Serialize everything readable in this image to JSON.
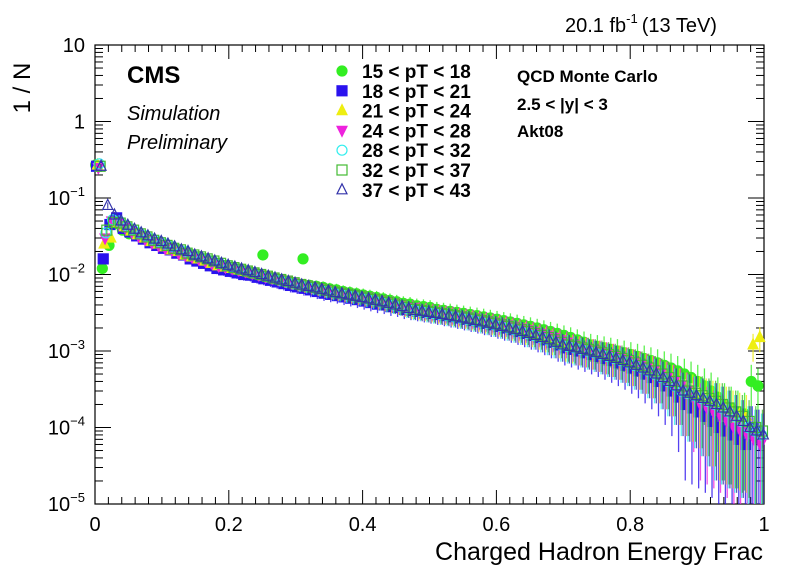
{
  "header": {
    "lumi_main": "20.1 fb",
    "lumi_exp": "-1",
    "lumi_energy": "(13 TeV)"
  },
  "labels": {
    "experiment": "CMS",
    "status_1": "Simulation",
    "status_2": "Preliminary"
  },
  "annotations": [
    "QCD Monte Carlo",
    "2.5 < |y| < 3",
    "Akt08"
  ],
  "chart_data": {
    "type": "scatter",
    "xlabel": "Charged Hadron Energy Frac",
    "ylabel": "1 / N",
    "xlim": [
      0,
      1
    ],
    "ylim": [
      1e-05,
      10
    ],
    "ylog": true,
    "grid": false,
    "legend_position": "top-center",
    "x_ticks": [
      "0",
      "0.2",
      "0.4",
      "0.6",
      "0.8",
      "1"
    ],
    "y_ticks": [
      {
        "base": "10",
        "exp": ""
      },
      {
        "base": "1",
        "exp": ""
      },
      {
        "base": "10",
        "exp": "−1"
      },
      {
        "base": "10",
        "exp": "−2"
      },
      {
        "base": "10",
        "exp": "−3"
      },
      {
        "base": "10",
        "exp": "−4"
      },
      {
        "base": "10",
        "exp": "−5"
      }
    ],
    "x": [
      0.005,
      0.015,
      0.025,
      0.035,
      0.045,
      0.055,
      0.065,
      0.075,
      0.085,
      0.095,
      0.105,
      0.115,
      0.125,
      0.135,
      0.145,
      0.155,
      0.165,
      0.175,
      0.185,
      0.195,
      0.205,
      0.215,
      0.225,
      0.235,
      0.245,
      0.255,
      0.265,
      0.275,
      0.285,
      0.295,
      0.305,
      0.315,
      0.325,
      0.335,
      0.345,
      0.355,
      0.365,
      0.375,
      0.385,
      0.395,
      0.405,
      0.415,
      0.425,
      0.435,
      0.445,
      0.455,
      0.465,
      0.475,
      0.485,
      0.495,
      0.505,
      0.515,
      0.525,
      0.535,
      0.545,
      0.555,
      0.565,
      0.575,
      0.585,
      0.595,
      0.605,
      0.615,
      0.625,
      0.635,
      0.645,
      0.655,
      0.665,
      0.675,
      0.685,
      0.695,
      0.705,
      0.715,
      0.725,
      0.735,
      0.745,
      0.755,
      0.765,
      0.775,
      0.785,
      0.795,
      0.805,
      0.815,
      0.825,
      0.835,
      0.845,
      0.855,
      0.865,
      0.875,
      0.885,
      0.895,
      0.905,
      0.915,
      0.925,
      0.935,
      0.945,
      0.955,
      0.965,
      0.975,
      0.985,
      0.995
    ],
    "series": [
      {
        "name": "15 < pT < 18",
        "color": "#33ee22",
        "marker": "circle-filled",
        "values": [
          0.27,
          0.012,
          0.024,
          0.046,
          0.038,
          0.034,
          0.033,
          0.03,
          0.027,
          0.026,
          0.024,
          0.022,
          0.02,
          0.019,
          0.017,
          0.016,
          0.015,
          0.014,
          0.013,
          0.012,
          0.0115,
          0.011,
          0.0105,
          0.01,
          0.0095,
          0.018,
          0.009,
          0.0085,
          0.008,
          0.0078,
          0.0075,
          0.016,
          0.0072,
          0.007,
          0.0068,
          0.0065,
          0.0063,
          0.006,
          0.0058,
          0.0056,
          0.0054,
          0.0052,
          0.005,
          0.0048,
          0.0046,
          0.0044,
          0.0042,
          0.0041,
          0.0039,
          0.0038,
          0.0037,
          0.0035,
          0.0034,
          0.0033,
          0.0032,
          0.0031,
          0.003,
          0.0029,
          0.0028,
          0.0027,
          0.0026,
          0.0025,
          0.0024,
          0.0023,
          0.0022,
          0.0021,
          0.002,
          0.0019,
          0.0018,
          0.0017,
          0.0016,
          0.0015,
          0.0014,
          0.0013,
          0.0012,
          0.00115,
          0.0011,
          0.00105,
          0.001,
          0.00095,
          0.0009,
          0.00085,
          0.0008,
          0.00075,
          0.0007,
          0.00065,
          0.0006,
          0.00055,
          0.0005,
          0.00045,
          0.0004,
          0.00035,
          0.0003,
          0.00025,
          0.0002,
          0.00018,
          0.00016,
          0.00015,
          0.0004,
          0.00035
        ]
      },
      {
        "name": "18 < pT < 21",
        "color": "#2a12ee",
        "marker": "square-filled",
        "values": [
          0.26,
          0.016,
          0.045,
          0.055,
          0.04,
          0.036,
          0.032,
          0.029,
          0.026,
          0.024,
          0.022,
          0.021,
          0.019,
          0.018,
          0.016,
          0.015,
          0.014,
          0.013,
          0.012,
          0.0115,
          0.011,
          0.0105,
          0.01,
          0.0098,
          0.0092,
          0.0088,
          0.0084,
          0.008,
          0.0076,
          0.0072,
          0.0069,
          0.0066,
          0.0063,
          0.006,
          0.0057,
          0.0055,
          0.0053,
          0.0051,
          0.0049,
          0.0047,
          0.0045,
          0.0043,
          0.0041,
          0.004,
          0.0038,
          0.0037,
          0.0035,
          0.0034,
          0.0033,
          0.0032,
          0.0031,
          0.003,
          0.0029,
          0.0028,
          0.0027,
          0.0026,
          0.0025,
          0.0024,
          0.0023,
          0.0022,
          0.0021,
          0.002,
          0.0019,
          0.0018,
          0.0017,
          0.0016,
          0.0015,
          0.0014,
          0.0013,
          0.0012,
          0.0011,
          0.00105,
          0.001,
          0.00095,
          0.0009,
          0.00085,
          0.0008,
          0.00075,
          0.0007,
          0.00065,
          0.0006,
          0.00055,
          0.0005,
          0.00045,
          0.0004,
          0.00035,
          0.0003,
          0.00025,
          0.0002,
          0.00018,
          0.00016,
          0.00014,
          0.00012,
          0.0001,
          9e-05,
          8e-05,
          7e-05,
          6e-05,
          0.0001,
          9e-05
        ]
      },
      {
        "name": "21 < pT < 24",
        "color": "#eeee11",
        "marker": "triangle-up-filled",
        "values": [
          0.27,
          0.025,
          0.03,
          0.048,
          0.042,
          0.037,
          0.033,
          0.03,
          0.027,
          0.025,
          0.023,
          0.021,
          0.02,
          0.018,
          0.017,
          0.016,
          0.015,
          0.014,
          0.013,
          0.0125,
          0.012,
          0.0115,
          0.011,
          0.0105,
          0.01,
          0.0095,
          0.009,
          0.0086,
          0.0082,
          0.0078,
          0.0074,
          0.0071,
          0.0068,
          0.0065,
          0.0062,
          0.0059,
          0.0057,
          0.0055,
          0.0053,
          0.0051,
          0.0049,
          0.0047,
          0.0045,
          0.0043,
          0.0041,
          0.0039,
          0.0037,
          0.0035,
          0.0034,
          0.0033,
          0.0032,
          0.0031,
          0.003,
          0.0029,
          0.0028,
          0.0027,
          0.0026,
          0.0025,
          0.0024,
          0.0023,
          0.0022,
          0.0021,
          0.002,
          0.0019,
          0.0018,
          0.0017,
          0.0016,
          0.0015,
          0.0014,
          0.0013,
          0.0012,
          0.00115,
          0.0011,
          0.00105,
          0.001,
          0.00095,
          0.0009,
          0.00085,
          0.0008,
          0.00075,
          0.0007,
          0.00065,
          0.0006,
          0.00055,
          0.0005,
          0.00045,
          0.0004,
          0.00035,
          0.0003,
          0.00028,
          0.00026,
          0.00024,
          0.00022,
          0.0002,
          0.00018,
          0.00016,
          0.00015,
          0.00014,
          0.0012,
          0.0015
        ]
      },
      {
        "name": "24 < pT < 28",
        "color": "#ee22dd",
        "marker": "triangle-down-filled",
        "values": [
          0.25,
          0.03,
          0.05,
          0.047,
          0.041,
          0.036,
          0.032,
          0.029,
          0.026,
          0.024,
          0.022,
          0.021,
          0.019,
          0.018,
          0.017,
          0.016,
          0.015,
          0.014,
          0.013,
          0.0125,
          0.012,
          0.0115,
          0.011,
          0.0104,
          0.0099,
          0.0094,
          0.009,
          0.0086,
          0.0082,
          0.0078,
          0.0075,
          0.0072,
          0.0069,
          0.0066,
          0.0063,
          0.006,
          0.0058,
          0.0056,
          0.0054,
          0.0052,
          0.005,
          0.0048,
          0.0046,
          0.0044,
          0.0042,
          0.004,
          0.0038,
          0.0037,
          0.0035,
          0.0034,
          0.0033,
          0.0032,
          0.0031,
          0.003,
          0.0029,
          0.0028,
          0.0027,
          0.0026,
          0.0025,
          0.0024,
          0.0023,
          0.0022,
          0.0021,
          0.002,
          0.0019,
          0.0018,
          0.0017,
          0.0016,
          0.0015,
          0.0014,
          0.0013,
          0.0012,
          0.0011,
          0.00105,
          0.001,
          0.00095,
          0.0009,
          0.00085,
          0.0008,
          0.00075,
          0.0007,
          0.00065,
          0.0006,
          0.00055,
          0.0005,
          0.00045,
          0.0004,
          0.00035,
          0.0003,
          0.00025,
          0.0002,
          0.00018,
          0.00016,
          0.00014,
          0.00012,
          0.0001,
          9e-05,
          8e-05,
          7e-05,
          6e-05
        ]
      },
      {
        "name": "28 < pT < 32",
        "color": "#33eeee",
        "marker": "circle-open",
        "values": [
          0.28,
          0.035,
          0.052,
          0.05,
          0.044,
          0.039,
          0.035,
          0.032,
          0.029,
          0.027,
          0.025,
          0.023,
          0.021,
          0.02,
          0.018,
          0.017,
          0.016,
          0.015,
          0.014,
          0.0132,
          0.0125,
          0.0118,
          0.0112,
          0.0106,
          0.01,
          0.0095,
          0.009,
          0.0085,
          0.0081,
          0.0077,
          0.0073,
          0.007,
          0.0067,
          0.0064,
          0.0061,
          0.0058,
          0.0056,
          0.0054,
          0.0052,
          0.005,
          0.0048,
          0.0046,
          0.0044,
          0.0042,
          0.004,
          0.0038,
          0.0036,
          0.0034,
          0.0033,
          0.0032,
          0.0031,
          0.003,
          0.0029,
          0.0028,
          0.0027,
          0.0026,
          0.0025,
          0.0024,
          0.0023,
          0.0022,
          0.0021,
          0.002,
          0.0019,
          0.0018,
          0.0017,
          0.0016,
          0.0015,
          0.0014,
          0.0013,
          0.0012,
          0.00115,
          0.0011,
          0.00105,
          0.001,
          0.00095,
          0.0009,
          0.00085,
          0.0008,
          0.00075,
          0.0007,
          0.00065,
          0.0006,
          0.00055,
          0.0005,
          0.00045,
          0.0004,
          0.00035,
          0.0003,
          0.00028,
          0.00026,
          0.00024,
          0.00022,
          0.0002,
          0.00018,
          0.00016,
          0.00014,
          0.00012,
          0.0001,
          9e-05,
          8e-05
        ]
      },
      {
        "name": "32 < pT < 37",
        "color": "#44bb33",
        "marker": "square-open",
        "values": [
          0.26,
          0.038,
          0.048,
          0.047,
          0.042,
          0.038,
          0.034,
          0.031,
          0.028,
          0.026,
          0.024,
          0.022,
          0.021,
          0.019,
          0.018,
          0.017,
          0.016,
          0.015,
          0.014,
          0.013,
          0.0123,
          0.0117,
          0.0111,
          0.0105,
          0.01,
          0.0095,
          0.009,
          0.0086,
          0.0082,
          0.0078,
          0.0074,
          0.0071,
          0.0068,
          0.0065,
          0.0062,
          0.0059,
          0.0057,
          0.0055,
          0.0053,
          0.0051,
          0.0049,
          0.0047,
          0.0045,
          0.0043,
          0.0041,
          0.0039,
          0.0037,
          0.0035,
          0.0034,
          0.0033,
          0.0032,
          0.0031,
          0.003,
          0.0029,
          0.0028,
          0.0027,
          0.0026,
          0.0025,
          0.0024,
          0.0023,
          0.0022,
          0.0021,
          0.002,
          0.0019,
          0.0018,
          0.0017,
          0.0016,
          0.0015,
          0.0014,
          0.0013,
          0.0012,
          0.00115,
          0.0011,
          0.00105,
          0.001,
          0.00095,
          0.0009,
          0.00085,
          0.0008,
          0.00075,
          0.0007,
          0.00065,
          0.0006,
          0.00055,
          0.0005,
          0.00045,
          0.0004,
          0.00035,
          0.0003,
          0.00028,
          0.00026,
          0.00024,
          0.00022,
          0.0002,
          0.00018,
          0.00016,
          0.00014,
          0.00012,
          0.0001,
          9e-05
        ]
      },
      {
        "name": "37 < pT < 43",
        "color": "#3333aa",
        "marker": "triangle-up-open",
        "values": [
          0.26,
          0.08,
          0.06,
          0.05,
          0.044,
          0.039,
          0.035,
          0.032,
          0.029,
          0.027,
          0.025,
          0.023,
          0.021,
          0.02,
          0.018,
          0.017,
          0.016,
          0.015,
          0.014,
          0.0132,
          0.0125,
          0.0118,
          0.0112,
          0.0106,
          0.01,
          0.0095,
          0.009,
          0.0085,
          0.0081,
          0.0077,
          0.0073,
          0.007,
          0.0067,
          0.0064,
          0.0061,
          0.0058,
          0.0056,
          0.0054,
          0.0052,
          0.005,
          0.0048,
          0.0046,
          0.0044,
          0.0042,
          0.004,
          0.0038,
          0.0036,
          0.0034,
          0.0033,
          0.0032,
          0.0031,
          0.003,
          0.0029,
          0.0028,
          0.0027,
          0.0026,
          0.0025,
          0.0024,
          0.0023,
          0.0022,
          0.0021,
          0.002,
          0.0019,
          0.0018,
          0.0017,
          0.0016,
          0.0015,
          0.0014,
          0.0013,
          0.0012,
          0.00115,
          0.0011,
          0.00105,
          0.001,
          0.00095,
          0.0009,
          0.00085,
          0.0008,
          0.00075,
          0.0007,
          0.00065,
          0.0006,
          0.00055,
          0.0005,
          0.00045,
          0.0004,
          0.00035,
          0.0003,
          0.00028,
          0.00026,
          0.00024,
          0.00022,
          0.0002,
          0.00018,
          0.00016,
          0.00014,
          0.00012,
          0.0001,
          9e-05,
          8e-05
        ]
      }
    ]
  }
}
